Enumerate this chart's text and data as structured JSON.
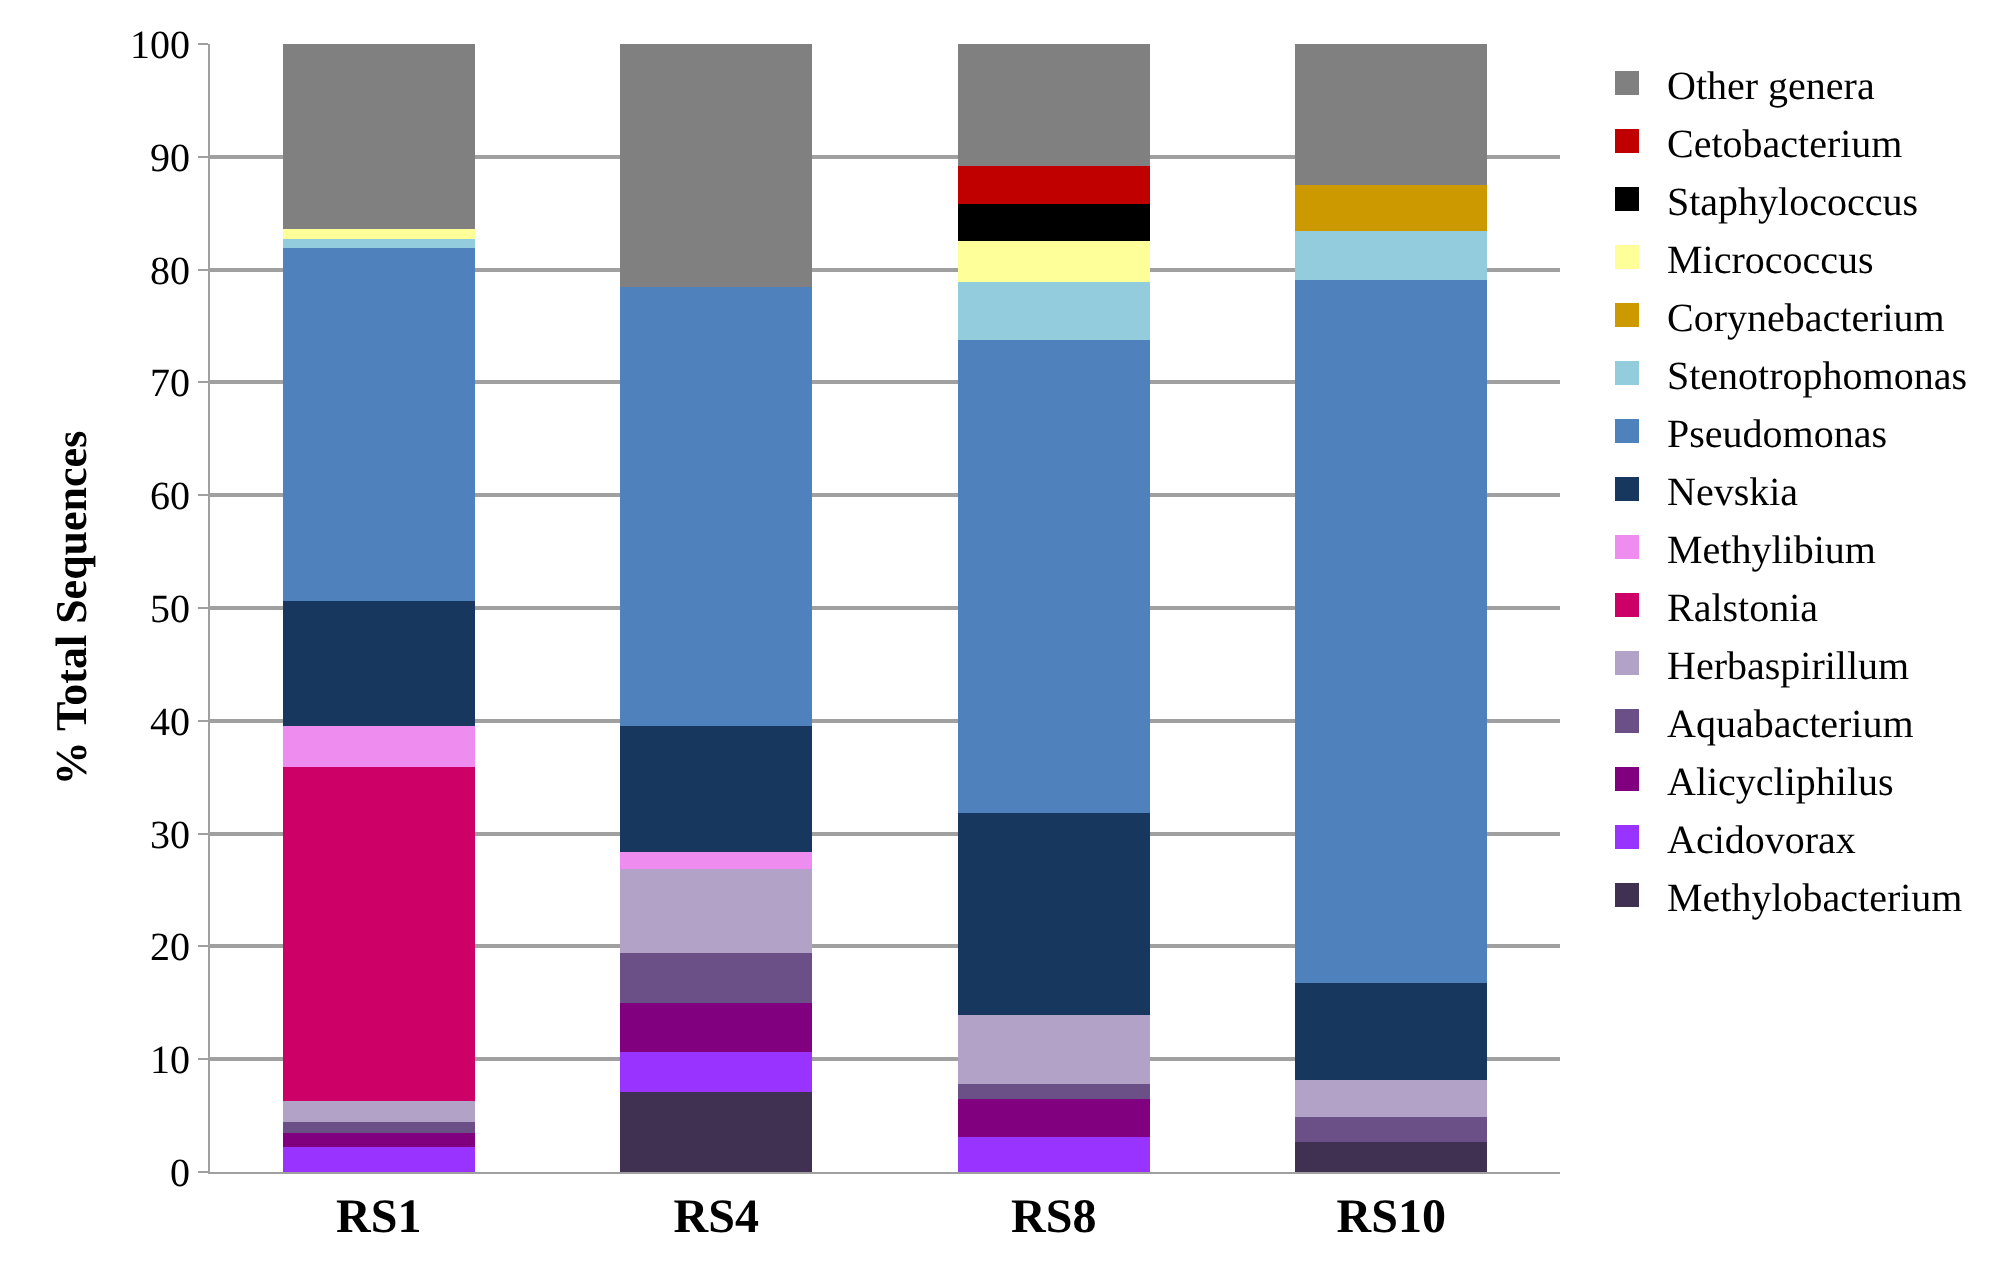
{
  "chart_data": {
    "type": "bar",
    "stacked": true,
    "ylabel": "% Total Sequences",
    "categories": [
      "RS1",
      "RS4",
      "RS8",
      "RS10"
    ],
    "ylim": [
      0,
      100
    ],
    "yticks": [
      0,
      10,
      20,
      30,
      40,
      50,
      60,
      70,
      80,
      90,
      100
    ],
    "grid": "y",
    "legend": "right",
    "series": [
      {
        "name": "Methylobacterium",
        "color": "#403152",
        "values": [
          null,
          7.1,
          null,
          2.7
        ]
      },
      {
        "name": "Acidovorax",
        "color": "#9933ff",
        "values": [
          2.2,
          3.5,
          3.1,
          null
        ]
      },
      {
        "name": "Alicycliphilus",
        "color": "#800080",
        "values": [
          1.3,
          4.4,
          3.4,
          null
        ]
      },
      {
        "name": "Aquabacterium",
        "color": "#6a5087",
        "values": [
          0.9,
          4.4,
          1.3,
          2.2
        ]
      },
      {
        "name": "Herbaspirillum",
        "color": "#b3a2c7",
        "values": [
          1.9,
          7.5,
          6.1,
          3.3
        ]
      },
      {
        "name": "Ralstonia",
        "color": "#cc0066",
        "values": [
          29.6,
          null,
          null,
          null
        ]
      },
      {
        "name": "Methylibium",
        "color": "#ee8cf0",
        "values": [
          3.6,
          1.5,
          null,
          null
        ]
      },
      {
        "name": "Nevskia",
        "color": "#17375e",
        "values": [
          11.1,
          11.1,
          17.9,
          8.6
        ]
      },
      {
        "name": "Pseudomonas",
        "color": "#4f81bd",
        "values": [
          31.3,
          39.0,
          42.0,
          62.3
        ]
      },
      {
        "name": "Stenotrophomonas",
        "color": "#93cddd",
        "values": [
          0.8,
          null,
          5.1,
          4.3
        ]
      },
      {
        "name": "Corynebacterium",
        "color": "#cc9900",
        "values": [
          null,
          null,
          null,
          4.1
        ]
      },
      {
        "name": "Micrococcus",
        "color": "#ffff99",
        "values": [
          0.9,
          null,
          3.6,
          null
        ]
      },
      {
        "name": "Staphylococcus",
        "color": "#000000",
        "values": [
          null,
          null,
          3.3,
          null
        ]
      },
      {
        "name": "Cetobacterium",
        "color": "#c00000",
        "values": [
          null,
          null,
          3.4,
          null
        ]
      },
      {
        "name": "Other genera",
        "color": "#808080",
        "values": [
          16.4,
          21.5,
          10.8,
          12.5
        ]
      }
    ]
  }
}
